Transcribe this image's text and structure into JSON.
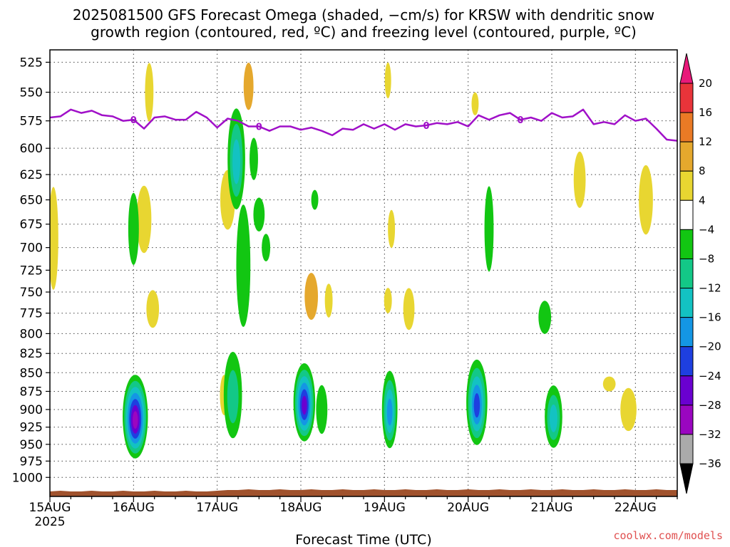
{
  "title": {
    "line1": "2025081500 GFS Forecast Omega (shaded, −cm/s) for KRSW with dendritic snow",
    "line2": "growth region (contoured, red, ºC) and freezing level (contoured, purple, ºC)"
  },
  "credit": "coolwx.com/models",
  "credit_color": "#e05050",
  "chart_data": {
    "type": "heatmap",
    "xlabel": "Forecast Time (UTC)",
    "x_ticks": [
      "15AUG",
      "16AUG",
      "17AUG",
      "18AUG",
      "19AUG",
      "20AUG",
      "21AUG",
      "22AUG"
    ],
    "x_year_label": "2025",
    "x_range_hours": [
      0,
      180
    ],
    "y_ticks": [
      525,
      550,
      575,
      600,
      625,
      650,
      675,
      700,
      725,
      750,
      775,
      800,
      825,
      850,
      875,
      900,
      925,
      950,
      975,
      1000
    ],
    "y_range_hpa": [
      515,
      1030
    ],
    "y_scale": "log-pressure",
    "grid": true,
    "freezing_level_label": "0",
    "freezing_level": [
      [
        0,
        572
      ],
      [
        3,
        571
      ],
      [
        6,
        565
      ],
      [
        9,
        568
      ],
      [
        12,
        566
      ],
      [
        15,
        570
      ],
      [
        18,
        571
      ],
      [
        21,
        575
      ],
      [
        24,
        574
      ],
      [
        27,
        582
      ],
      [
        30,
        572
      ],
      [
        33,
        571
      ],
      [
        36,
        574
      ],
      [
        39,
        574
      ],
      [
        42,
        567
      ],
      [
        45,
        572
      ],
      [
        48,
        581
      ],
      [
        51,
        573
      ],
      [
        54,
        575
      ],
      [
        57,
        580
      ],
      [
        60,
        580
      ],
      [
        63,
        584
      ],
      [
        66,
        580
      ],
      [
        69,
        580
      ],
      [
        72,
        583
      ],
      [
        75,
        581
      ],
      [
        78,
        584
      ],
      [
        81,
        588
      ],
      [
        84,
        582
      ],
      [
        87,
        583
      ],
      [
        90,
        578
      ],
      [
        93,
        582
      ],
      [
        96,
        578
      ],
      [
        99,
        583
      ],
      [
        102,
        578
      ],
      [
        105,
        580
      ],
      [
        108,
        579
      ],
      [
        111,
        577
      ],
      [
        114,
        578
      ],
      [
        117,
        576
      ],
      [
        120,
        580
      ],
      [
        123,
        570
      ],
      [
        126,
        574
      ],
      [
        129,
        570
      ],
      [
        132,
        568
      ],
      [
        135,
        574
      ],
      [
        138,
        572
      ],
      [
        141,
        575
      ],
      [
        144,
        568
      ],
      [
        147,
        572
      ],
      [
        150,
        571
      ],
      [
        153,
        565
      ],
      [
        156,
        578
      ],
      [
        159,
        576
      ],
      [
        162,
        578
      ],
      [
        165,
        570
      ],
      [
        168,
        575
      ],
      [
        171,
        573
      ],
      [
        174,
        582
      ],
      [
        177,
        592
      ],
      [
        180,
        593
      ]
    ],
    "colorbar": {
      "levels": [
        20,
        16,
        12,
        8,
        4,
        -4,
        -8,
        -12,
        -16,
        -20,
        -24,
        -28,
        -32,
        -36
      ],
      "colors": [
        "#e8197a",
        "#e8343a",
        "#ea7a25",
        "#e5a82d",
        "#e8d631",
        "#ffffff",
        "#12c612",
        "#13c887",
        "#13c2c2",
        "#1496e4",
        "#1e3fe0",
        "#6a00d0",
        "#9a06c0",
        "#aaaaaa",
        "#000000"
      ]
    },
    "shaded_regions": [
      {
        "x": 1,
        "p": 690,
        "dx": 0.8,
        "dp": 110,
        "value": 6
      },
      {
        "x": 27,
        "p": 670,
        "dx": 1.5,
        "dp": 70,
        "value": 6
      },
      {
        "x": 29.5,
        "p": 770,
        "dx": 1.2,
        "dp": 45,
        "value": 6
      },
      {
        "x": 28.5,
        "p": 550,
        "dx": 0.6,
        "dp": 50,
        "value": 6
      },
      {
        "x": 51,
        "p": 650,
        "dx": 1.5,
        "dp": 60,
        "value": 6
      },
      {
        "x": 50,
        "p": 880,
        "dx": 0.6,
        "dp": 55,
        "value": 6
      },
      {
        "x": 57,
        "p": 545,
        "dx": 0.8,
        "dp": 40,
        "value": 8
      },
      {
        "x": 58.5,
        "p": 610,
        "dx": 0.6,
        "dp": 40,
        "value": -8
      },
      {
        "x": 60,
        "p": 665,
        "dx": 1,
        "dp": 35,
        "value": -8
      },
      {
        "x": 62,
        "p": 700,
        "dx": 0.6,
        "dp": 30,
        "value": -8
      },
      {
        "x": 75,
        "p": 755,
        "dx": 1.3,
        "dp": 55,
        "value": 8
      },
      {
        "x": 80,
        "p": 760,
        "dx": 0.5,
        "dp": 40,
        "value": 6
      },
      {
        "x": 76,
        "p": 650,
        "dx": 0.4,
        "dp": 20,
        "value": -8
      },
      {
        "x": 98,
        "p": 680,
        "dx": 0.4,
        "dp": 40,
        "value": 6
      },
      {
        "x": 103,
        "p": 770,
        "dx": 1,
        "dp": 50,
        "value": 6
      },
      {
        "x": 97,
        "p": 760,
        "dx": 0.5,
        "dp": 30,
        "value": 6
      },
      {
        "x": 97,
        "p": 540,
        "dx": 0.3,
        "dp": 30,
        "value": 6
      },
      {
        "x": 126,
        "p": 680,
        "dx": 0.7,
        "dp": 90,
        "value": -8
      },
      {
        "x": 122,
        "p": 560,
        "dx": 0.4,
        "dp": 20,
        "value": 6
      },
      {
        "x": 142,
        "p": 780,
        "dx": 1.2,
        "dp": 40,
        "value": -8
      },
      {
        "x": 152,
        "p": 630,
        "dx": 1.1,
        "dp": 55,
        "value": 6
      },
      {
        "x": 160.5,
        "p": 865,
        "dx": 1.2,
        "dp": 20,
        "value": 6
      },
      {
        "x": 166,
        "p": 900,
        "dx": 1.7,
        "dp": 60,
        "value": 6
      },
      {
        "x": 171,
        "p": 650,
        "dx": 1.4,
        "dp": 70,
        "value": 6
      }
    ],
    "updraft_cores": [
      {
        "x": 24.5,
        "p": 910,
        "dx": 2.6,
        "dp": 110,
        "core": -30
      },
      {
        "x": 52.5,
        "p": 880,
        "dx": 1.6,
        "dp": 110,
        "core": -12
      },
      {
        "x": 53.5,
        "p": 610,
        "dx": 1.5,
        "dp": 90,
        "core": -16
      },
      {
        "x": 55.5,
        "p": 720,
        "dx": 1,
        "dp": 130,
        "core": -8
      },
      {
        "x": 73,
        "p": 890,
        "dx": 2.1,
        "dp": 100,
        "core": -26
      },
      {
        "x": 78,
        "p": 900,
        "dx": 0.6,
        "dp": 60,
        "core": -8
      },
      {
        "x": 97.5,
        "p": 900,
        "dx": 1.2,
        "dp": 100,
        "core": -20
      },
      {
        "x": 122.5,
        "p": 890,
        "dx": 2,
        "dp": 110,
        "core": -22
      },
      {
        "x": 144.5,
        "p": 910,
        "dx": 1.5,
        "dp": 80,
        "core": -14
      },
      {
        "x": 24,
        "p": 680,
        "dx": 0.5,
        "dp": 70,
        "core": -6
      }
    ]
  }
}
